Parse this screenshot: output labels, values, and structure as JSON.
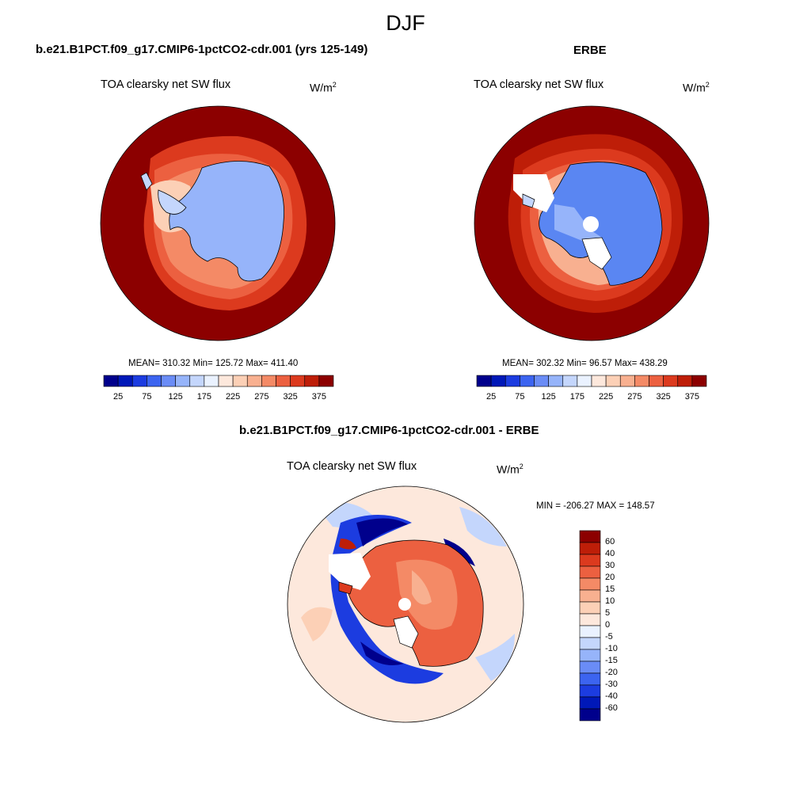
{
  "season": "DJF",
  "panels": [
    {
      "id": "model",
      "case_title": "b.e21.B1PCT.f09_g17.CMIP6-1pctCO2-cdr.001 (yrs 125-149)",
      "variable": "TOA clearsky net SW flux",
      "units_base": "W/m",
      "units_exp": "2",
      "stats_text": "MEAN= 310.32  Min= 125.72  Max= 411.40"
    },
    {
      "id": "obs",
      "case_title": "ERBE",
      "variable": "TOA clearsky net SW flux",
      "units_base": "W/m",
      "units_exp": "2",
      "stats_text": "MEAN= 302.32  Min=  96.57  Max= 438.29"
    },
    {
      "id": "diff",
      "case_title": "b.e21.B1PCT.f09_g17.CMIP6-1pctCO2-cdr.001 - ERBE",
      "variable": "TOA clearsky net SW flux",
      "units_base": "W/m",
      "units_exp": "2",
      "stats_text": "MIN = -206.27 MAX = 148.57"
    }
  ],
  "colorbar_abs": {
    "colors": [
      "#00008c",
      "#0018b8",
      "#1c3ce0",
      "#3c64f0",
      "#6a8cf6",
      "#96b4fa",
      "#c4d6fc",
      "#eaf2ff",
      "#fde8dc",
      "#fcd0b6",
      "#f8b090",
      "#f48a66",
      "#ec6040",
      "#dc3a1e",
      "#be1e08",
      "#8c0000"
    ],
    "tick_labels": [
      "25",
      "75",
      "125",
      "175",
      "225",
      "275",
      "325",
      "375"
    ]
  },
  "colorbar_diff": {
    "colors": [
      "#00008c",
      "#0018b8",
      "#1c3ce0",
      "#3c64f0",
      "#6a8cf6",
      "#96b4fa",
      "#c4d6fc",
      "#eaf2ff",
      "#fde8dc",
      "#fcd0b6",
      "#f8b090",
      "#f48a66",
      "#ec6040",
      "#dc3a1e",
      "#be1e08",
      "#8c0000"
    ],
    "tick_labels": [
      "60",
      "40",
      "30",
      "20",
      "15",
      "10",
      "5",
      "0",
      "-5",
      "-10",
      "-15",
      "-20",
      "-30",
      "-40",
      "-60"
    ]
  },
  "map_colors": {
    "ocean_model": "#8c0000",
    "ocean_obs": "#8c0000",
    "ice_model": "#96b4fa",
    "ice_obs": "#5a86f2",
    "diff_background": "#fde8dc",
    "diff_positive": "#ec6040",
    "diff_negative": "#1c3ce0"
  }
}
